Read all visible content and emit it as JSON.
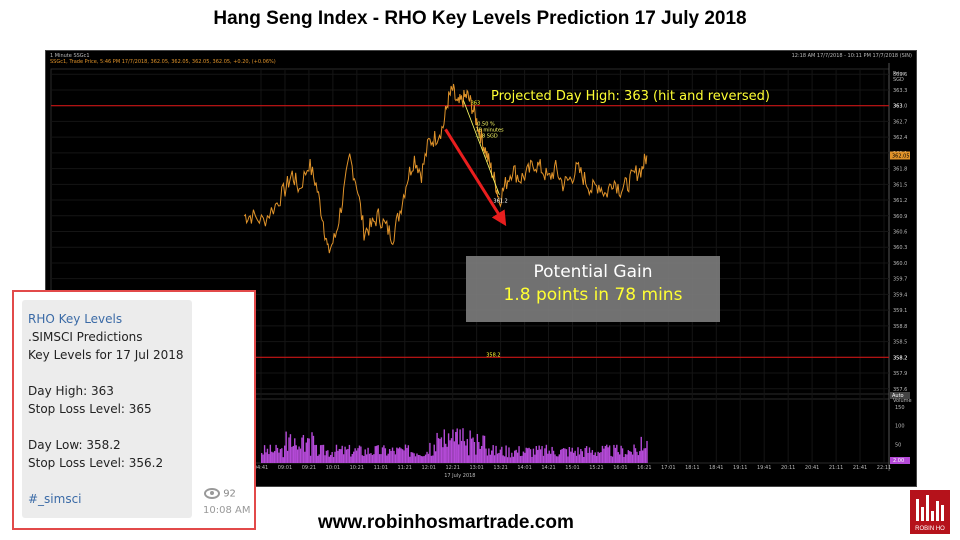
{
  "page": {
    "title": "Hang Seng Index - RHO Key Levels Prediction 17 July 2018",
    "website": "www.robinhosmartrade.com",
    "logo_text": "ROBIN HO"
  },
  "chart_header": {
    "left": "1 Minute SSGc1",
    "legend": "SSGc1, Trade Price, 5:46 PM 17/7/2018, 362.05, 362.05, 362.05, 362.05, +0.20, (+0.06%)",
    "right": "12:18 AM 17/7/2018 - 10:11 PM 17/7/2018 (SIN)",
    "price_label": "Price SGD",
    "last_price": "362.05",
    "auto_label": "Auto",
    "volume_label": "Volume",
    "volume_last": "2.00"
  },
  "annotations": {
    "projected_high": "Projected Day High: 363 (hit and reversed)",
    "line_high_label": "363",
    "line_low_label": "358.2",
    "measure_text": [
      "-0.50 %",
      "78 minutes",
      "-1.8 SGD"
    ],
    "end_price": "361.2",
    "gain_title": "Potential Gain",
    "gain_sub": "1.8 points in 78 mins"
  },
  "message": {
    "channel": "RHO Key Levels",
    "line1": ".SIMSCI Predictions",
    "line2": "Key Levels for 17 Jul 2018",
    "day_high": "Day High: 363",
    "stop_high": "Stop Loss Level: 365",
    "day_low": "Day Low: 358.2",
    "stop_low": "Stop Loss Level: 356.2",
    "hashtag": "#_simsci",
    "views": "92",
    "time": "10:08 AM"
  },
  "colors": {
    "price_line": "#e0932a",
    "key_line": "#c81414",
    "volume": "#b54ad8",
    "arrow": "#e81e1e",
    "highlight": "#ffff33"
  },
  "chart_data": {
    "type": "line",
    "x_date": "17 July 2018",
    "x_ticks": [
      "04:41",
      "09:01",
      "09:21",
      "10:01",
      "10:21",
      "11:01",
      "11:21",
      "12:01",
      "12:21",
      "13:01",
      "13:21",
      "14:01",
      "14:21",
      "15:01",
      "15:21",
      "16:01",
      "16:21",
      "17:01",
      "18:11",
      "18:41",
      "19:11",
      "19:41",
      "20:11",
      "20:41",
      "21:11",
      "21:41",
      "22:11"
    ],
    "ylim": [
      357.5,
      363.7
    ],
    "y_ticks": [
      363.6,
      363.3,
      363,
      362.7,
      362.4,
      362.1,
      361.8,
      361.5,
      361.2,
      360.9,
      360.6,
      360.3,
      360,
      359.7,
      359.4,
      359.1,
      358.8,
      358.5,
      358.2,
      357.9,
      357.6
    ],
    "volume_ticks": [
      150,
      100,
      50
    ],
    "key_levels": [
      363,
      358.2
    ],
    "series": [
      {
        "values": [
          [
            0.3,
            360.9
          ],
          [
            0.6,
            360.9
          ],
          [
            1.1,
            360.8
          ],
          [
            1.6,
            361.1
          ],
          [
            2.0,
            361.4
          ],
          [
            2.3,
            361.7
          ],
          [
            2.6,
            361.4
          ],
          [
            3.0,
            361.9
          ],
          [
            3.3,
            361.5
          ],
          [
            3.6,
            360.8
          ],
          [
            3.8,
            360.2
          ],
          [
            4.1,
            360.5
          ],
          [
            4.4,
            361.2
          ],
          [
            4.7,
            362.0
          ],
          [
            5.0,
            361.5
          ],
          [
            5.3,
            360.6
          ],
          [
            5.6,
            360.7
          ],
          [
            5.9,
            360.9
          ],
          [
            6.2,
            360.7
          ],
          [
            6.5,
            360.5
          ],
          [
            6.8,
            361.0
          ],
          [
            7.1,
            361.6
          ],
          [
            7.4,
            362.0
          ],
          [
            7.7,
            361.7
          ],
          [
            8.0,
            362.3
          ],
          [
            8.3,
            362.4
          ],
          [
            8.6,
            362.6
          ],
          [
            8.8,
            363.1
          ],
          [
            9.0,
            363.3
          ],
          [
            9.2,
            363.0
          ],
          [
            9.4,
            363.1
          ],
          [
            9.6,
            363.2
          ],
          [
            9.8,
            363.0
          ],
          [
            10.0,
            362.7
          ],
          [
            10.2,
            362.4
          ],
          [
            10.4,
            362.1
          ],
          [
            10.6,
            361.8
          ],
          [
            10.8,
            361.5
          ],
          [
            10.95,
            361.2
          ],
          [
            11.2,
            361.5
          ],
          [
            11.5,
            361.8
          ],
          [
            11.8,
            361.6
          ],
          [
            12.1,
            361.7
          ],
          [
            12.4,
            361.9
          ],
          [
            12.7,
            361.8
          ],
          [
            13.0,
            361.6
          ],
          [
            13.3,
            361.8
          ],
          [
            13.6,
            361.5
          ],
          [
            13.9,
            361.6
          ],
          [
            14.2,
            361.8
          ],
          [
            14.5,
            361.6
          ],
          [
            14.8,
            361.4
          ],
          [
            15.1,
            361.5
          ],
          [
            15.4,
            361.3
          ],
          [
            15.7,
            361.6
          ],
          [
            16.0,
            361.4
          ],
          [
            16.3,
            361.5
          ],
          [
            16.6,
            361.7
          ],
          [
            16.9,
            361.8
          ],
          [
            17.1,
            362.05
          ]
        ]
      }
    ]
  }
}
